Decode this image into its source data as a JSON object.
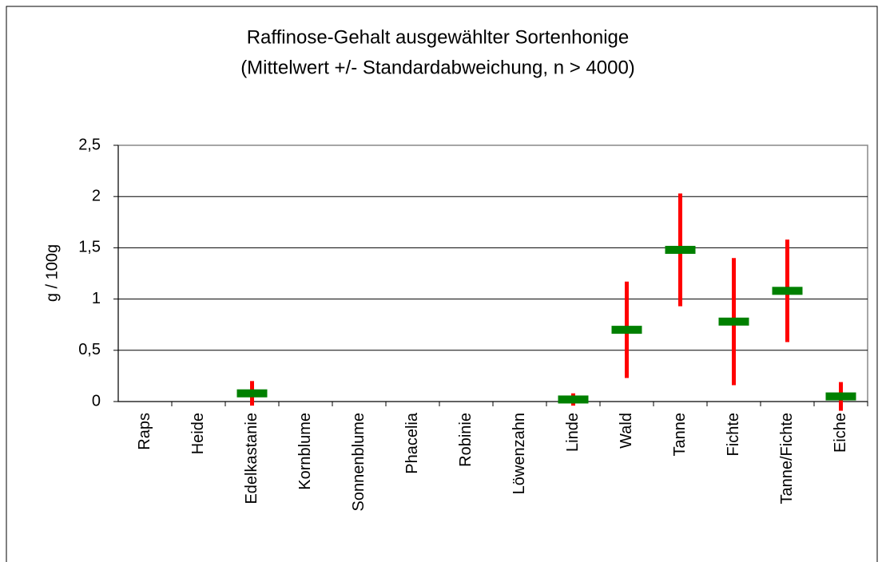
{
  "chart_data": {
    "type": "errorbar",
    "title": "Raffinose-Gehalt ausgewählter Sortenhonige",
    "subtitle": "(Mittelwert +/- Standardabweichung,  n > 4000)",
    "y_label": "g / 100g",
    "categories": [
      "Raps",
      "Heide",
      "Edelkastanie",
      "Kornblume",
      "Sonnenblume",
      "Phacelia",
      "Robinie",
      "Löwenzahn",
      "Linde",
      "Wald",
      "Tanne",
      "Fichte",
      "Tanne/Fichte",
      "Eiche"
    ],
    "values": [
      null,
      null,
      0.08,
      null,
      null,
      null,
      null,
      null,
      0.02,
      0.7,
      1.48,
      0.78,
      1.08,
      0.05
    ],
    "errors": [
      null,
      null,
      0.12,
      null,
      null,
      null,
      null,
      null,
      0.06,
      0.47,
      0.55,
      0.62,
      0.5,
      0.14
    ],
    "color": "#008000",
    "error_color": "#ff0000",
    "ylim": [
      0,
      2.5
    ],
    "yticks": [
      0,
      {
        "value": 0.5,
        "label": "0,5"
      },
      1,
      {
        "value": 1.5,
        "label": "1,5"
      },
      2,
      {
        "value": 2.5,
        "label": "2,5"
      }
    ],
    "grid": true
  }
}
